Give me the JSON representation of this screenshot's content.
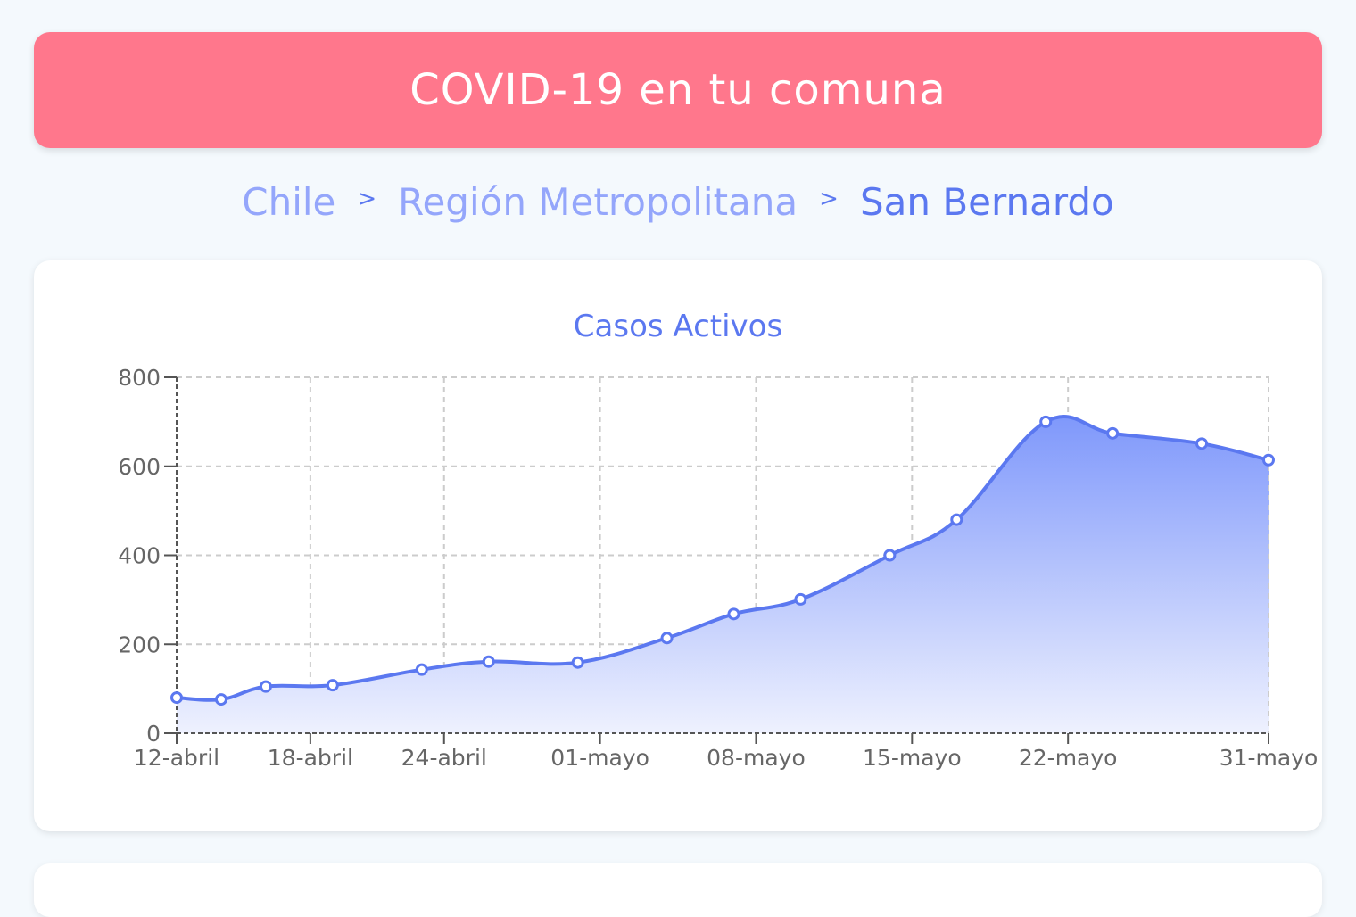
{
  "header": {
    "title": "COVID-19 en tu comuna"
  },
  "breadcrumb": {
    "items": [
      "Chile",
      "Región Metropolitana",
      "San Bernardo"
    ],
    "separator": ">"
  },
  "colors": {
    "header_bg": "#ff778c",
    "accent": "#5b78f0",
    "breadcrumb_inactive": "#94a6fb",
    "area_top": "#7f98fb",
    "area_bottom": "#eef1fe"
  },
  "chart_data": {
    "type": "area",
    "title": "Casos Activos",
    "xlabel": "",
    "ylabel": "",
    "ylim": [
      0,
      800
    ],
    "yticks": [
      0,
      200,
      400,
      600,
      800
    ],
    "grid": true,
    "xticks": [
      {
        "label": "12-abril",
        "day": 0
      },
      {
        "label": "18-abril",
        "day": 6
      },
      {
        "label": "24-abril",
        "day": 12
      },
      {
        "label": "01-mayo",
        "day": 19
      },
      {
        "label": "08-mayo",
        "day": 26
      },
      {
        "label": "15-mayo",
        "day": 33
      },
      {
        "label": "22-mayo",
        "day": 40
      },
      {
        "label": "31-mayo",
        "day": 49
      }
    ],
    "points": [
      {
        "day": 0,
        "y": 80
      },
      {
        "day": 2,
        "y": 76
      },
      {
        "day": 4,
        "y": 105
      },
      {
        "day": 7,
        "y": 108
      },
      {
        "day": 11,
        "y": 143
      },
      {
        "day": 14,
        "y": 161
      },
      {
        "day": 18,
        "y": 159
      },
      {
        "day": 22,
        "y": 214
      },
      {
        "day": 25,
        "y": 268
      },
      {
        "day": 28,
        "y": 301
      },
      {
        "day": 32,
        "y": 400
      },
      {
        "day": 35,
        "y": 480
      },
      {
        "day": 39,
        "y": 700
      },
      {
        "day": 42,
        "y": 674
      },
      {
        "day": 46,
        "y": 651
      },
      {
        "day": 49,
        "y": 614
      }
    ]
  }
}
